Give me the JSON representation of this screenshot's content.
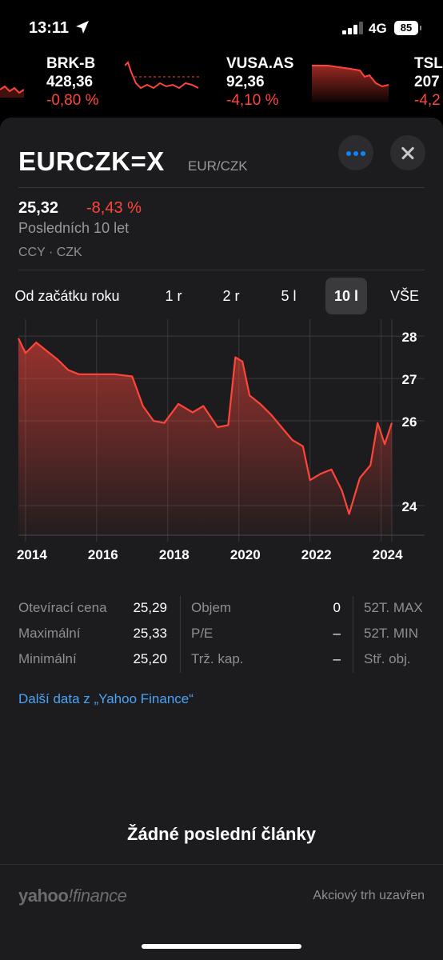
{
  "status_bar": {
    "time": "13:11",
    "network": "4G",
    "battery": "85"
  },
  "ticker": [
    {
      "symbol": "BRK-B",
      "price": "428,36",
      "change": "-0,80 %"
    },
    {
      "symbol": "VUSA.AS",
      "price": "92,36",
      "change": "-4,10 %"
    },
    {
      "symbol": "TSL",
      "price": "207",
      "change": "-4,2"
    }
  ],
  "header": {
    "symbol": "EURCZK=X",
    "name": "EUR/CZK"
  },
  "quote": {
    "price": "25,32",
    "change": "-8,43 %",
    "period_label": "Posledních 10 let",
    "meta": "CCY · CZK"
  },
  "range_tabs": [
    {
      "label": "Od začátku roku",
      "active": false
    },
    {
      "label": "1 r",
      "active": false
    },
    {
      "label": "2 r",
      "active": false
    },
    {
      "label": "5 l",
      "active": false
    },
    {
      "label": "10 l",
      "active": true
    },
    {
      "label": "VŠE",
      "active": false
    }
  ],
  "chart_data": {
    "type": "area",
    "x_ticks": [
      "2014",
      "2016",
      "2018",
      "2020",
      "2022",
      "2024"
    ],
    "y_ticks": [
      "28",
      "27",
      "26",
      "24"
    ],
    "x": [
      2013.8,
      2014.0,
      2014.3,
      2014.6,
      2014.9,
      2015.2,
      2015.5,
      2016.0,
      2016.5,
      2017.0,
      2017.3,
      2017.6,
      2017.9,
      2018.3,
      2018.7,
      2019.0,
      2019.4,
      2019.7,
      2019.9,
      2020.1,
      2020.3,
      2020.6,
      2020.9,
      2021.2,
      2021.5,
      2021.8,
      2022.0,
      2022.3,
      2022.6,
      2022.9,
      2023.1,
      2023.4,
      2023.7,
      2023.9,
      2024.1,
      2024.3
    ],
    "values": [
      27.95,
      27.6,
      27.85,
      27.65,
      27.45,
      27.2,
      27.1,
      27.1,
      27.1,
      27.05,
      26.35,
      26.0,
      25.95,
      26.4,
      26.2,
      26.35,
      25.85,
      25.9,
      27.5,
      27.4,
      26.6,
      26.4,
      26.15,
      25.85,
      25.55,
      25.4,
      24.6,
      24.75,
      24.85,
      24.35,
      23.8,
      24.65,
      24.95,
      25.95,
      25.45,
      25.95
    ],
    "ylim": [
      23.3,
      28.4
    ],
    "xlim": [
      2013.8,
      2024.3
    ],
    "grid": true,
    "color": "#ff453a"
  },
  "stats": [
    [
      {
        "label": "Otevírací cena",
        "value": "25,29"
      },
      {
        "label": "Maximální",
        "value": "25,33"
      },
      {
        "label": "Minimální",
        "value": "25,20"
      }
    ],
    [
      {
        "label": "Objem",
        "value": "0"
      },
      {
        "label": "P/E",
        "value": "–"
      },
      {
        "label": "Trž. kap.",
        "value": "–"
      }
    ],
    [
      {
        "label": "52T. MAX",
        "value": ""
      },
      {
        "label": "52T. MIN",
        "value": ""
      },
      {
        "label": "Stř. obj.",
        "value": ""
      }
    ]
  ],
  "links": {
    "yahoo": "Další data z „Yahoo Finance“"
  },
  "articles": {
    "empty": "Žádné poslední články"
  },
  "footer": {
    "logo": "yahoo!finance",
    "market_status": "Akciový trh uzavřen"
  },
  "colors": {
    "negative": "#ff453a",
    "accent": "#0a84ff",
    "link": "#4aa3f5",
    "sheet": "#1c1c1e"
  }
}
